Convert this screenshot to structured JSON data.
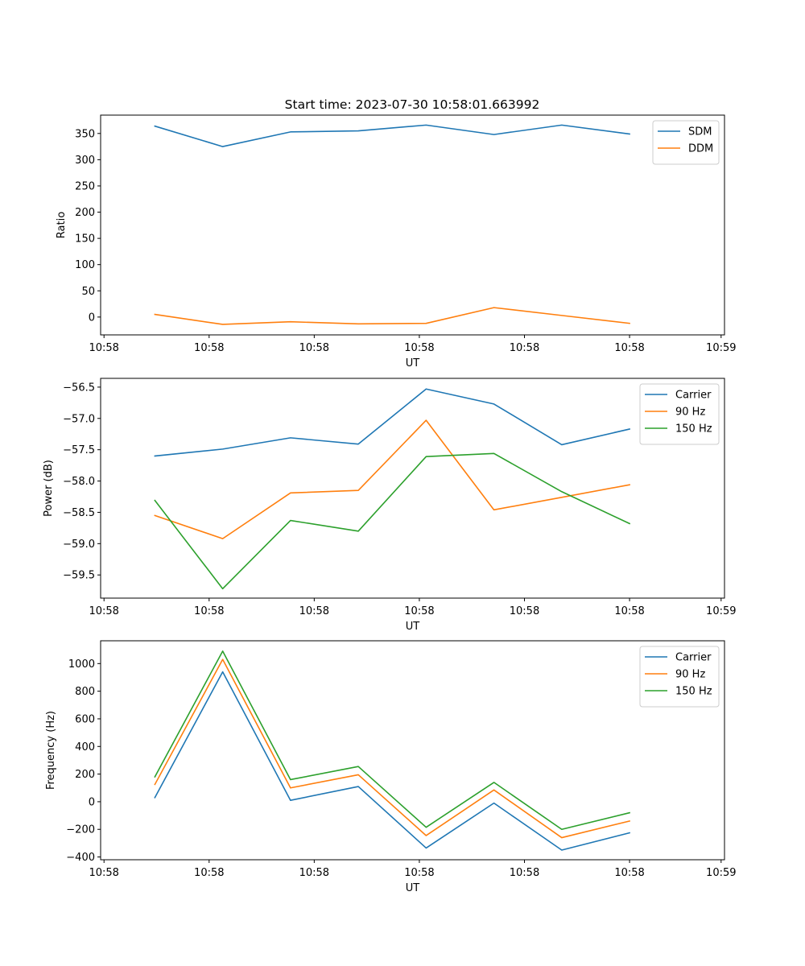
{
  "figure_title": "Start time: 2023-07-30 10:58:01.663992",
  "chart_data": [
    {
      "type": "line",
      "title": "Start time: 2023-07-30 10:58:01.663992",
      "xlabel": "UT",
      "ylabel": "Ratio",
      "x": [
        1,
        2,
        3,
        4,
        5,
        6,
        7,
        8
      ],
      "xlim": [
        0.2,
        9.4
      ],
      "xticks": [
        0.25,
        1.8,
        3.35,
        4.9,
        6.45,
        8.0,
        9.35
      ],
      "xtick_labels": [
        "10:58",
        "10:58",
        "10:58",
        "10:58",
        "10:58",
        "10:58",
        "10:59"
      ],
      "ylim": [
        -34,
        385
      ],
      "yticks": [
        0,
        50,
        100,
        150,
        200,
        250,
        300,
        350
      ],
      "ytick_labels": [
        "0",
        "50",
        "100",
        "150",
        "200",
        "250",
        "300",
        "350"
      ],
      "legend": "top-right",
      "series": [
        {
          "name": "SDM",
          "color": "#1f77b4",
          "values": [
            364,
            325,
            353,
            355,
            366,
            348,
            366,
            349
          ]
        },
        {
          "name": "DDM",
          "color": "#ff7f0e",
          "values": [
            5,
            -14,
            -9,
            -13,
            -12,
            18,
            3,
            -12
          ]
        }
      ]
    },
    {
      "type": "line",
      "title": "",
      "xlabel": "UT",
      "ylabel": "Power (dB)",
      "x": [
        1,
        2,
        3,
        4,
        5,
        6,
        7,
        8
      ],
      "xlim": [
        0.2,
        9.4
      ],
      "xticks": [
        0.25,
        1.8,
        3.35,
        4.9,
        6.45,
        8.0,
        9.35
      ],
      "xtick_labels": [
        "10:58",
        "10:58",
        "10:58",
        "10:58",
        "10:58",
        "10:58",
        "10:59"
      ],
      "ylim": [
        -59.87,
        -56.36
      ],
      "yticks": [
        -56.5,
        -57.0,
        -57.5,
        -58.0,
        -58.5,
        -59.0,
        -59.5
      ],
      "ytick_labels": [
        "−56.5",
        "−57.0",
        "−57.5",
        "−58.0",
        "−58.5",
        "−59.0",
        "−59.5"
      ],
      "legend": "top-right",
      "series": [
        {
          "name": "Carrier",
          "color": "#1f77b4",
          "values": [
            -57.6,
            -57.49,
            -57.31,
            -57.41,
            -56.53,
            -56.77,
            -57.42,
            -57.17
          ]
        },
        {
          "name": "90 Hz",
          "color": "#ff7f0e",
          "values": [
            -58.55,
            -58.92,
            -58.19,
            -58.15,
            -57.03,
            -58.46,
            -58.26,
            -58.06
          ]
        },
        {
          "name": "150 Hz",
          "color": "#2ca02c",
          "values": [
            -58.31,
            -59.72,
            -58.63,
            -58.8,
            -57.61,
            -57.56,
            -58.17,
            -58.68
          ]
        }
      ]
    },
    {
      "type": "line",
      "title": "",
      "xlabel": "UT",
      "ylabel": "Frequency (Hz)",
      "x": [
        1,
        2,
        3,
        4,
        5,
        6,
        7,
        8
      ],
      "xlim": [
        0.2,
        9.4
      ],
      "xticks": [
        0.25,
        1.8,
        3.35,
        4.9,
        6.45,
        8.0,
        9.35
      ],
      "xtick_labels": [
        "10:58",
        "10:58",
        "10:58",
        "10:58",
        "10:58",
        "10:58",
        "10:59"
      ],
      "ylim": [
        -420,
        1165
      ],
      "yticks": [
        -400,
        -200,
        0,
        200,
        400,
        600,
        800,
        1000
      ],
      "ytick_labels": [
        "−400",
        "−200",
        "0",
        "200",
        "400",
        "600",
        "800",
        "1000"
      ],
      "legend": "top-right",
      "series": [
        {
          "name": "Carrier",
          "color": "#1f77b4",
          "values": [
            30,
            940,
            10,
            110,
            -335,
            -10,
            -350,
            -225
          ]
        },
        {
          "name": "90 Hz",
          "color": "#ff7f0e",
          "values": [
            125,
            1030,
            100,
            195,
            -245,
            85,
            -260,
            -140
          ]
        },
        {
          "name": "150 Hz",
          "color": "#2ca02c",
          "values": [
            180,
            1090,
            160,
            255,
            -185,
            140,
            -200,
            -80
          ]
        }
      ]
    }
  ]
}
